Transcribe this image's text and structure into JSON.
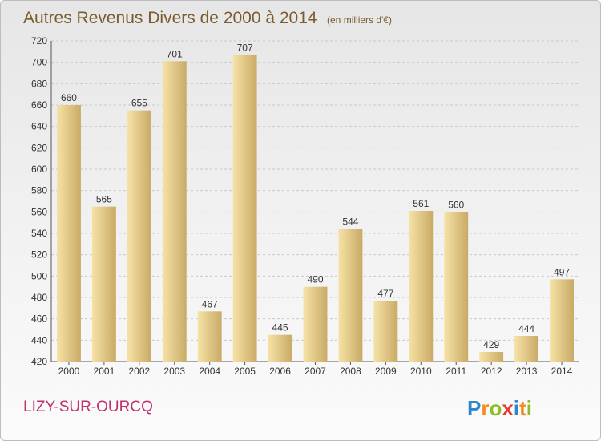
{
  "chart_data": {
    "type": "bar",
    "title": "Autres Revenus Divers de 2000 à 2014",
    "subtitle": "(en milliers d'€)",
    "categories": [
      "2000",
      "2001",
      "2002",
      "2003",
      "2004",
      "2005",
      "2006",
      "2007",
      "2008",
      "2009",
      "2010",
      "2011",
      "2012",
      "2013",
      "2014"
    ],
    "values": [
      660,
      565,
      655,
      701,
      467,
      707,
      445,
      490,
      544,
      477,
      561,
      560,
      429,
      444,
      497
    ],
    "ylim": [
      420,
      720
    ],
    "yticks": [
      420,
      440,
      460,
      480,
      500,
      520,
      540,
      560,
      580,
      600,
      620,
      640,
      660,
      680,
      700,
      720
    ],
    "grid": true,
    "xlabel": "",
    "ylabel": ""
  },
  "commune": "LIZY-SUR-OURCQ",
  "logo": {
    "letters": [
      "P",
      "r",
      "o",
      "x",
      "i",
      "t",
      "i"
    ],
    "colors": [
      "#2e86c8",
      "#f28c1e",
      "#8cbf26",
      "#e8382f",
      "#2e86c8",
      "#f28c1e",
      "#8cbf26"
    ]
  },
  "colors": {
    "bar_light": "#f6e2a6",
    "bar_dark": "#c9aa66",
    "title": "#7a5c2e",
    "commune": "#c0306e"
  }
}
